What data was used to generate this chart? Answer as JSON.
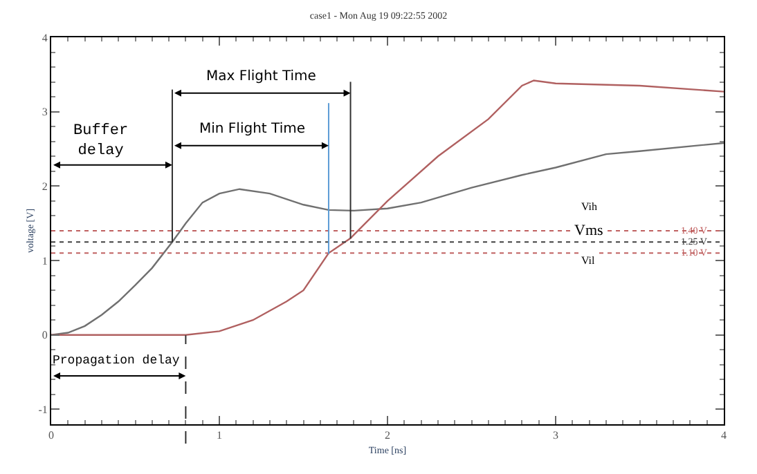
{
  "chart_data": {
    "type": "line",
    "title": "case1 - Mon Aug 19 09:22:55 2002",
    "xlabel": "Time [ns]",
    "ylabel": "voltage [V]",
    "xlim": [
      0,
      4
    ],
    "ylim": [
      -1.2,
      4
    ],
    "xticks": [
      0,
      1,
      2,
      3,
      4
    ],
    "yticks": [
      -1,
      0,
      1,
      2,
      3,
      4
    ],
    "marker": "none",
    "line_style": "solid",
    "series": [
      {
        "color": "#707070",
        "x": [
          0,
          0.1,
          0.2,
          0.3,
          0.4,
          0.5,
          0.6,
          0.72,
          0.8,
          0.9,
          1.0,
          1.12,
          1.3,
          1.5,
          1.65,
          1.8,
          2.0,
          2.2,
          2.5,
          2.8,
          3.0,
          3.3,
          3.5,
          4.0
        ],
        "values": [
          0,
          0.03,
          0.12,
          0.27,
          0.45,
          0.67,
          0.9,
          1.25,
          1.5,
          1.78,
          1.9,
          1.96,
          1.9,
          1.75,
          1.68,
          1.67,
          1.7,
          1.78,
          1.98,
          2.15,
          2.25,
          2.43,
          2.47,
          2.58
        ]
      },
      {
        "color": "#b06060",
        "x": [
          0,
          0.8,
          1.0,
          1.2,
          1.4,
          1.5,
          1.65,
          1.78,
          2.0,
          2.3,
          2.6,
          2.8,
          2.87,
          3.0,
          3.5,
          4.0
        ],
        "values": [
          0,
          0,
          0.05,
          0.2,
          0.45,
          0.6,
          1.1,
          1.3,
          1.8,
          2.4,
          2.9,
          3.35,
          3.42,
          3.38,
          3.35,
          3.27
        ]
      }
    ],
    "ref_lines": [
      {
        "axis": "y",
        "value": 1.4,
        "label": "1.40 V",
        "color": "#c06060",
        "line_style": "dotted"
      },
      {
        "axis": "y",
        "value": 1.25,
        "label": "1.25 V",
        "color": "#404040",
        "line_style": "dotted"
      },
      {
        "axis": "y",
        "value": 1.1,
        "label": "1.10 V",
        "color": "#c06060",
        "line_style": "dotted"
      },
      {
        "axis": "x",
        "value": 0.72,
        "color": "#303030",
        "line_style": "solid"
      },
      {
        "axis": "x",
        "value": 1.65,
        "color": "#5b9bd5",
        "line_style": "solid"
      },
      {
        "axis": "x",
        "value": 1.78,
        "color": "#303030",
        "line_style": "solid"
      },
      {
        "axis": "x",
        "value": 0.8,
        "color": "#303030",
        "line_style": "dashed"
      }
    ],
    "annotations": [
      "Buffer delay",
      "Max Flight Time",
      "Min Flight Time",
      "Propagation delay",
      "Vih",
      "Vms",
      "Vil"
    ]
  }
}
